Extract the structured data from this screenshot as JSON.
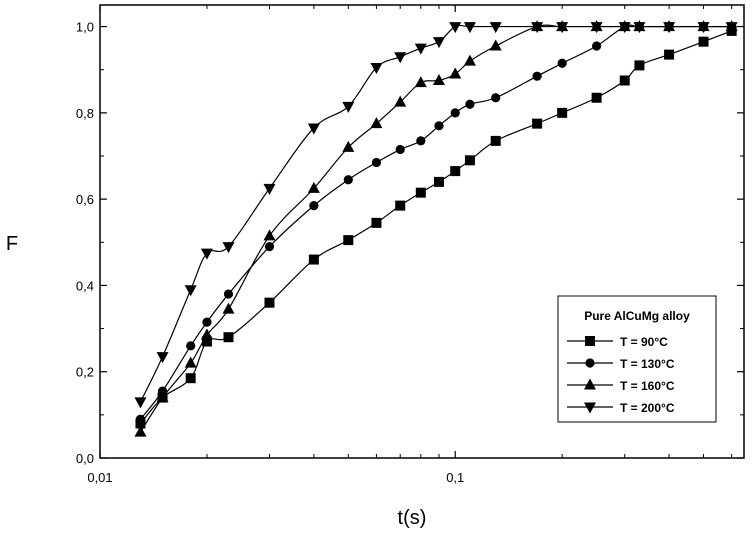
{
  "chart_data": {
    "type": "line",
    "xlabel": "t(s)",
    "ylabel": "F",
    "xscale": "log",
    "xlim": [
      0.01,
      0.65
    ],
    "ylim": [
      0,
      1.05
    ],
    "x_ticks": [
      {
        "value": 0.01,
        "label": "0,01"
      },
      {
        "value": 0.1,
        "label": "0,1"
      }
    ],
    "y_ticks": [
      {
        "value": 0.0,
        "label": "0,0"
      },
      {
        "value": 0.2,
        "label": "0,2"
      },
      {
        "value": 0.4,
        "label": "0,4"
      },
      {
        "value": 0.6,
        "label": "0,6"
      },
      {
        "value": 0.8,
        "label": "0,8"
      },
      {
        "value": 1.0,
        "label": "1,0"
      }
    ],
    "grid": false,
    "legend": {
      "title": "Pure AlCuMg alloy",
      "position": "bottom-right"
    },
    "series": [
      {
        "name": "T = 90°C",
        "marker": "square",
        "x": [
          0.013,
          0.015,
          0.018,
          0.02,
          0.023,
          0.03,
          0.04,
          0.05,
          0.06,
          0.07,
          0.08,
          0.09,
          0.1,
          0.11,
          0.13,
          0.17,
          0.2,
          0.25,
          0.3,
          0.33,
          0.4,
          0.5,
          0.6
        ],
        "y": [
          0.08,
          0.14,
          0.185,
          0.27,
          0.28,
          0.36,
          0.46,
          0.505,
          0.545,
          0.585,
          0.615,
          0.64,
          0.665,
          0.69,
          0.735,
          0.775,
          0.8,
          0.835,
          0.875,
          0.91,
          0.935,
          0.965,
          0.99
        ]
      },
      {
        "name": "T = 130°C",
        "marker": "circle",
        "x": [
          0.013,
          0.015,
          0.018,
          0.02,
          0.023,
          0.03,
          0.04,
          0.05,
          0.06,
          0.07,
          0.08,
          0.09,
          0.1,
          0.11,
          0.13,
          0.17,
          0.2,
          0.25,
          0.3,
          0.33,
          0.4,
          0.5,
          0.6
        ],
        "y": [
          0.09,
          0.155,
          0.26,
          0.315,
          0.38,
          0.49,
          0.585,
          0.645,
          0.685,
          0.715,
          0.735,
          0.77,
          0.8,
          0.82,
          0.835,
          0.885,
          0.915,
          0.955,
          1.0,
          1.0,
          1.0,
          1.0,
          1.0
        ]
      },
      {
        "name": "T = 160°C",
        "marker": "triangle-up",
        "x": [
          0.013,
          0.015,
          0.018,
          0.02,
          0.023,
          0.03,
          0.04,
          0.05,
          0.06,
          0.07,
          0.08,
          0.09,
          0.1,
          0.11,
          0.13,
          0.17,
          0.2,
          0.25,
          0.3,
          0.33,
          0.4,
          0.5,
          0.6
        ],
        "y": [
          0.06,
          0.14,
          0.22,
          0.285,
          0.345,
          0.515,
          0.625,
          0.72,
          0.775,
          0.825,
          0.87,
          0.875,
          0.89,
          0.92,
          0.955,
          1.0,
          1.0,
          1.0,
          1.0,
          1.0,
          1.0,
          1.0,
          1.0
        ]
      },
      {
        "name": "T = 200°C",
        "marker": "triangle-down",
        "x": [
          0.013,
          0.015,
          0.018,
          0.02,
          0.023,
          0.03,
          0.04,
          0.05,
          0.06,
          0.07,
          0.08,
          0.09,
          0.1,
          0.11,
          0.13,
          0.17,
          0.2,
          0.25,
          0.3,
          0.33,
          0.4,
          0.5,
          0.6
        ],
        "y": [
          0.13,
          0.235,
          0.39,
          0.475,
          0.49,
          0.625,
          0.765,
          0.815,
          0.905,
          0.93,
          0.95,
          0.965,
          1.0,
          1.0,
          1.0,
          1.0,
          1.0,
          1.0,
          1.0,
          1.0,
          1.0,
          1.0,
          1.0
        ]
      }
    ]
  }
}
